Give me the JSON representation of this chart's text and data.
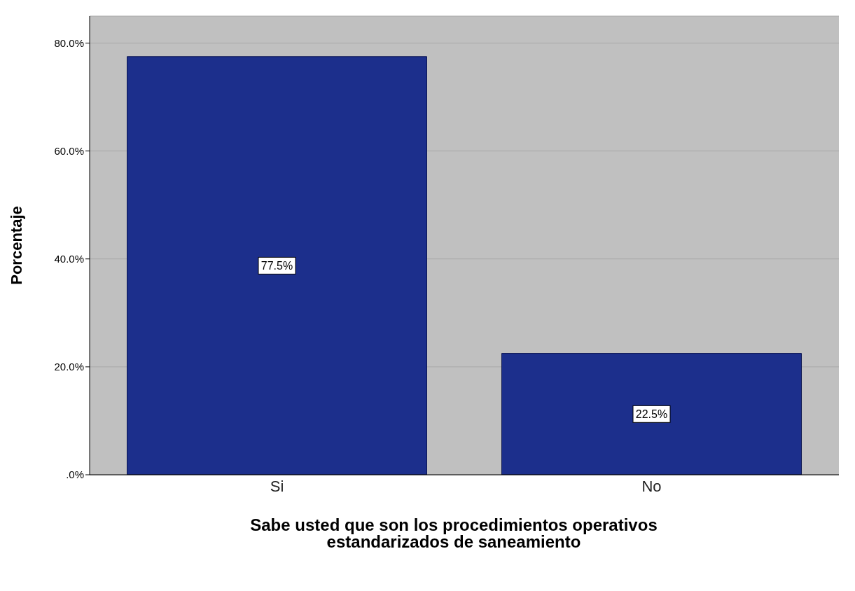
{
  "chart_data": {
    "type": "bar",
    "xlabel": "Sabe usted que son los procedimientos operativos estandarizados de saneamiento",
    "ylabel": "Porcentaje",
    "categories": [
      "Si",
      "No"
    ],
    "values": [
      77.5,
      22.5
    ],
    "value_labels": [
      "77.5%",
      "22.5%"
    ],
    "color": "#1c2f8c",
    "ylim": [
      0,
      85
    ],
    "yticks": [
      {
        "value": 0,
        "label": ".0%"
      },
      {
        "value": 20,
        "label": "20.0%"
      },
      {
        "value": 40,
        "label": "40.0%"
      },
      {
        "value": 60,
        "label": "60.0%"
      },
      {
        "value": 80,
        "label": "80.0%"
      }
    ],
    "grid": "y"
  }
}
